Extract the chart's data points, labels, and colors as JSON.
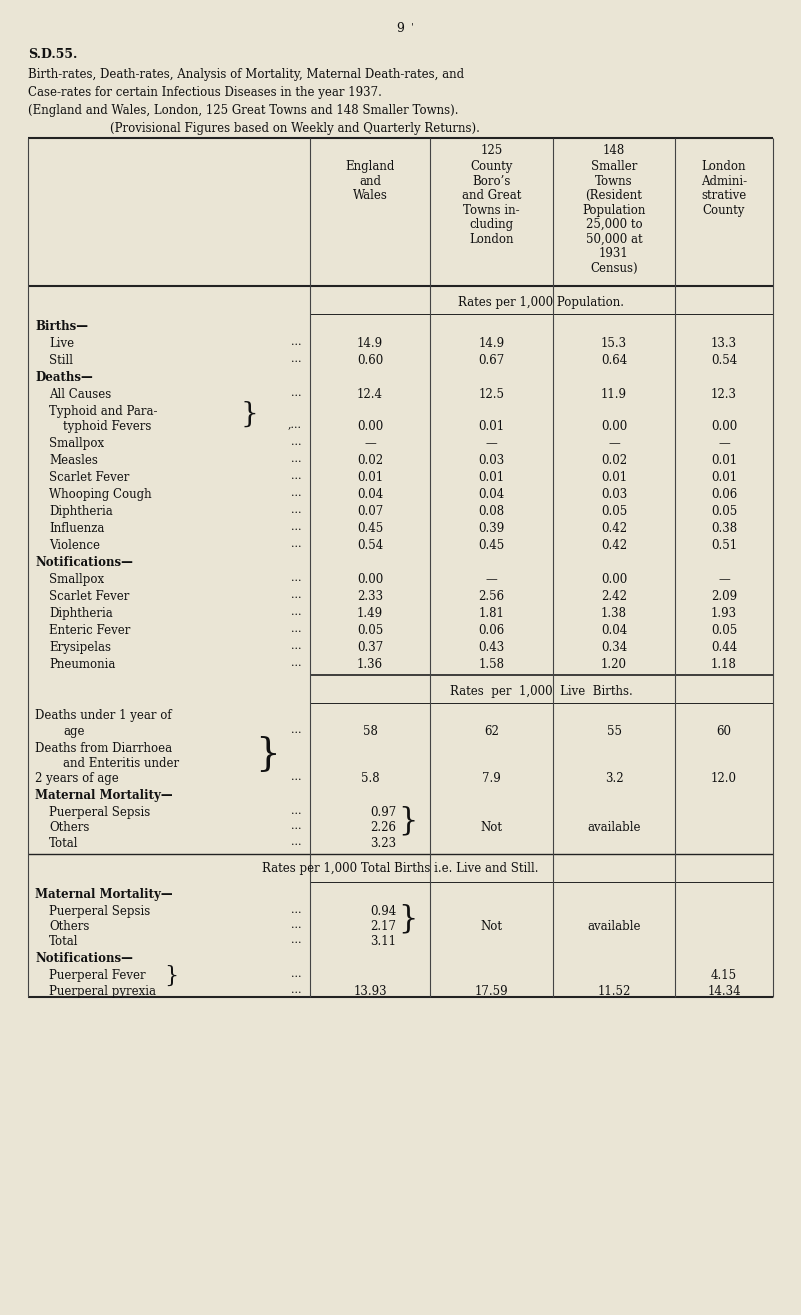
{
  "bg_color": "#EAE5D5",
  "text_color": "#111111",
  "page_number": "9",
  "title_bold": "S.D.55.",
  "title_line1": "Birth-rates, Death-rates, Analysis of Mortality, Maternal Death-rates, and",
  "title_line2": "Case-rates for certain Infectious Diseases in the year 1937.",
  "title_line3": "(England and Wales, London, 125 Great Towns and 148 Smaller Towns).",
  "title_line4": "(Provisional Figures based on Weekly and Quarterly Returns).",
  "col1_header": [
    "England",
    "and",
    "Wales"
  ],
  "col2_header": [
    "125",
    "County",
    "Boro’s",
    "and Great",
    "Towns in-",
    "cluding",
    "London"
  ],
  "col3_header": [
    "148",
    "Smaller",
    "Towns",
    "(Resident",
    "Population",
    "25,000 to",
    "50,000 at",
    "1931",
    "Census)"
  ],
  "col4_header": [
    "London",
    "Admini-",
    "strative",
    "County"
  ],
  "rates_pop": "Rates per 1,000 Population.",
  "rates_live": "Rates  per  1,000  Live  Births.",
  "rates_total": "Rates per 1,000 Total Births i.e. Live and Still.",
  "dot_str": "...",
  "comma_dot": ",...",
  "not_text": "Not",
  "avail_text": "available"
}
